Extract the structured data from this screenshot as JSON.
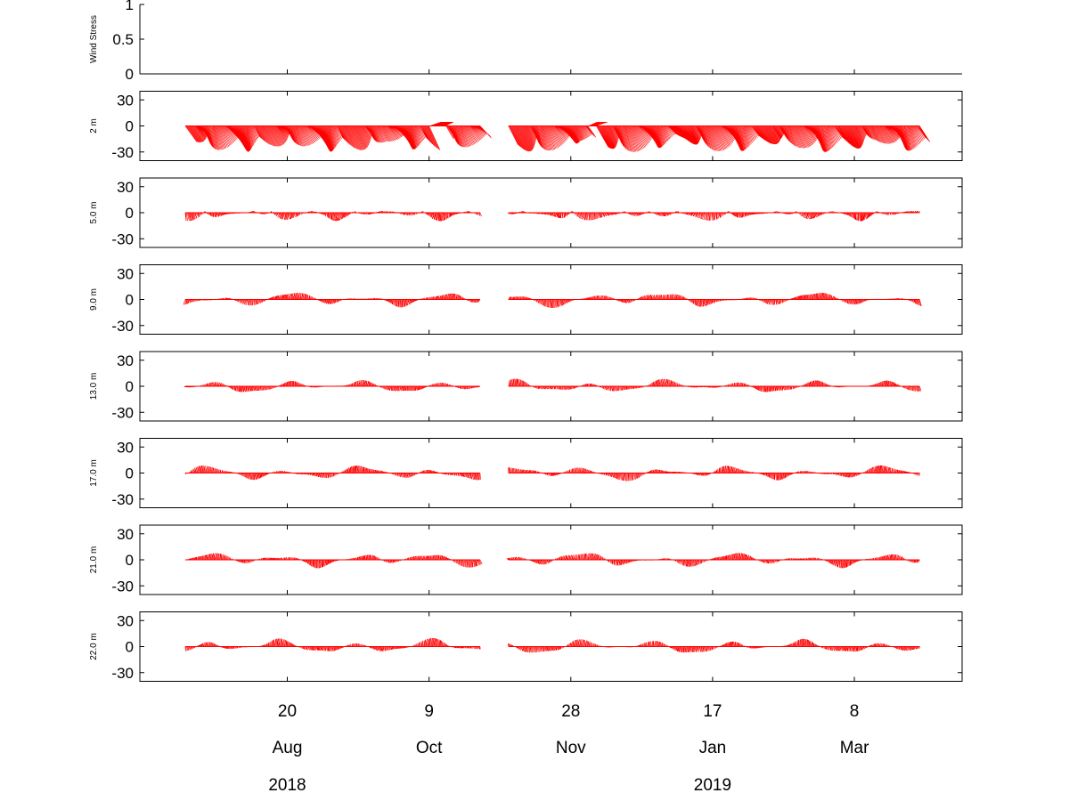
{
  "chart_data": {
    "type": "line",
    "chart_kind": "stick-vector-timeseries",
    "series_color": "#ff0000",
    "x_range": [
      "2018-06-29",
      "2019-04-15"
    ],
    "x_ticks": [
      "2018-08-20",
      "2018-10-09",
      "2018-11-28",
      "2019-01-17",
      "2019-03-08"
    ],
    "x_tick_labels": {
      "day": [
        "20",
        "9",
        "28",
        "17",
        "8"
      ],
      "month": [
        "Aug",
        "Oct",
        "Nov",
        "Jan",
        "Mar"
      ],
      "year": [
        {
          "label": "2018",
          "date": "2018-08-20"
        },
        {
          "label": "2019",
          "date": "2019-01-17"
        }
      ]
    },
    "data_start": "2018-07-15",
    "data_end": "2019-03-31",
    "gap": [
      "2018-10-27",
      "2018-11-06"
    ],
    "panels": [
      {
        "ylabel": "Wind Stress",
        "ylim": [
          0,
          1
        ],
        "yticks": [
          0,
          0.5,
          1
        ],
        "ytick_labels": [
          "0",
          "0.5",
          "1"
        ],
        "has_data": false
      },
      {
        "ylabel": "2 m",
        "ylim": [
          -40,
          40
        ],
        "yticks": [
          -30,
          0,
          30
        ],
        "ytick_labels": [
          "-30",
          "0",
          "30"
        ],
        "has_data": true,
        "amplitude": 30
      },
      {
        "ylabel": "5.0 m",
        "ylim": [
          -40,
          40
        ],
        "yticks": [
          -30,
          0,
          30
        ],
        "ytick_labels": [
          "-30",
          "0",
          "30"
        ],
        "has_data": true,
        "amplitude": 13
      },
      {
        "ylabel": "9.0 m",
        "ylim": [
          -40,
          40
        ],
        "yticks": [
          -30,
          0,
          30
        ],
        "ytick_labels": [
          "-30",
          "0",
          "30"
        ],
        "has_data": true,
        "amplitude": 9
      },
      {
        "ylabel": "13.0 m",
        "ylim": [
          -40,
          40
        ],
        "yticks": [
          -30,
          0,
          30
        ],
        "ytick_labels": [
          "-30",
          "0",
          "30"
        ],
        "has_data": true,
        "amplitude": 8
      },
      {
        "ylabel": "17.0 m",
        "ylim": [
          -40,
          40
        ],
        "yticks": [
          -30,
          0,
          30
        ],
        "ytick_labels": [
          "-30",
          "0",
          "30"
        ],
        "has_data": true,
        "amplitude": 9
      },
      {
        "ylabel": "21.0 m",
        "ylim": [
          -40,
          40
        ],
        "yticks": [
          -30,
          0,
          30
        ],
        "ytick_labels": [
          "-30",
          "0",
          "30"
        ],
        "has_data": true,
        "amplitude": 9
      },
      {
        "ylabel": "22.0 m",
        "ylim": [
          -40,
          40
        ],
        "yticks": [
          -30,
          0,
          30
        ],
        "ytick_labels": [
          "-30",
          "0",
          "30"
        ],
        "has_data": true,
        "amplitude": 9
      }
    ]
  }
}
